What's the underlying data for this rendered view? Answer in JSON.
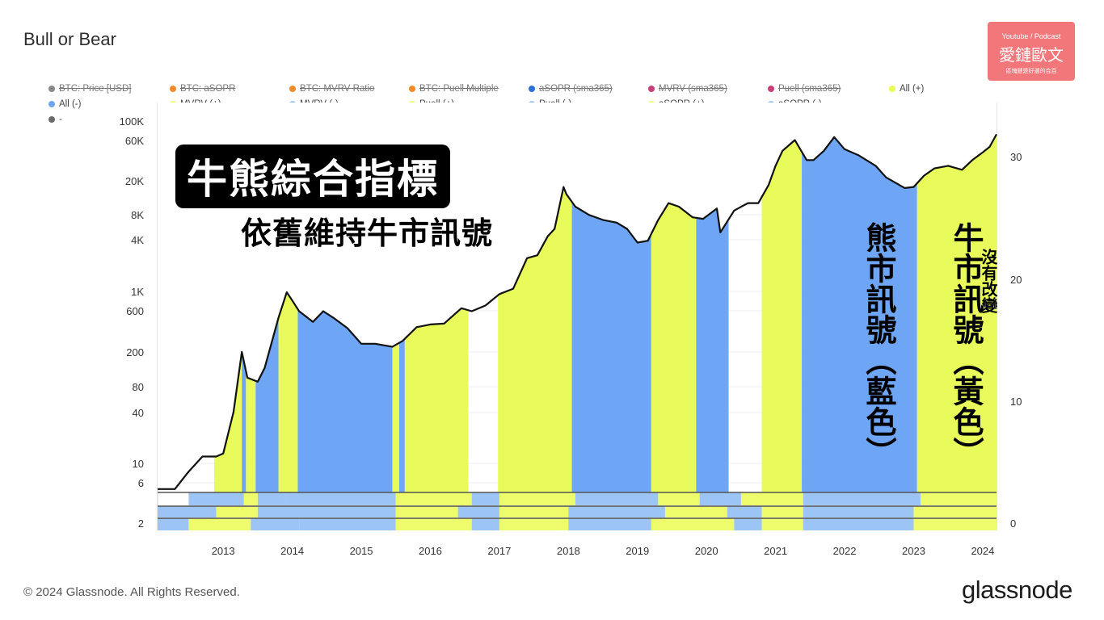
{
  "page": {
    "title": "Bull or Bear",
    "footer": "© 2024 Glassnode. All Rights Reserved.",
    "brand": "glassnode"
  },
  "badge": {
    "line1": "Youtube / Podcast",
    "line2": "愛鏈歐文",
    "line3": "區塊鏈是好選的合百"
  },
  "overlay": {
    "banner": "牛熊綜合指標",
    "subtitle": "依舊維持牛市訊號",
    "bear_note": "熊市訊號（藍色）",
    "bull_note": "牛市訊號（黃色）",
    "unchanged": "沒有改變"
  },
  "legend": [
    {
      "label": "BTC: Price [USD]",
      "color": "#8a8a8a",
      "off": true
    },
    {
      "label": "BTC: aSOPR",
      "color": "#f08a2a",
      "off": true
    },
    {
      "label": "BTC: MVRV Ratio",
      "color": "#f08a2a",
      "off": true
    },
    {
      "label": "BTC: Puell Multiple",
      "color": "#f08a2a",
      "off": true
    },
    {
      "label": "aSOPR (sma365)",
      "color": "#2e6fd8",
      "off": true
    },
    {
      "label": "MVRV (sma365)",
      "color": "#c8407a",
      "off": true
    },
    {
      "label": "Puell (sma365)",
      "color": "#c8407a",
      "off": true
    },
    {
      "label": "All (+)",
      "color": "#e8fb5a",
      "off": false
    },
    {
      "label": "All (-)",
      "color": "#6ea6f5",
      "off": false
    },
    {
      "label": "MVRV (+)",
      "color": "#eefb6a",
      "off": false
    },
    {
      "label": "MVRV (-)",
      "color": "#9cc4f5",
      "off": false
    },
    {
      "label": "Puell (+)",
      "color": "#eefb6a",
      "off": false
    },
    {
      "label": "Puell (-)",
      "color": "#9cc4f5",
      "off": false
    },
    {
      "label": "aSOPR (+)",
      "color": "#eefb6a",
      "off": false
    },
    {
      "label": "aSOPR (-)",
      "color": "#9cc4f5",
      "off": false
    },
    {
      "label": "-",
      "color": "",
      "off": false
    },
    {
      "label": "-",
      "color": "#6b6b6b",
      "off": false
    },
    {
      "label": "-",
      "color": "#6b6b6b",
      "off": false
    },
    {
      "label": "-",
      "color": "#6b6b6b",
      "off": false
    },
    {
      "label": "BTC: Price [USD]",
      "color": "#111111",
      "off": false
    }
  ],
  "chart_data": {
    "type": "line",
    "title": "Bull or Bear",
    "x_range": [
      2012.05,
      2024.2
    ],
    "x_ticks": [
      "2013",
      "2014",
      "2015",
      "2016",
      "2017",
      "2018",
      "2019",
      "2020",
      "2021",
      "2022",
      "2023",
      "2024"
    ],
    "y_left_scale": "log",
    "y_left_ticks": [
      "2",
      "6",
      "10",
      "40",
      "80",
      "200",
      "600",
      "1K",
      "4K",
      "8K",
      "20K",
      "60K",
      "100K"
    ],
    "y_right_ticks": [
      "0",
      "10",
      "20",
      "30"
    ],
    "series": [
      {
        "name": "BTC: Price [USD]",
        "x": [
          2012.05,
          2012.3,
          2012.5,
          2012.7,
          2012.9,
          2013.0,
          2013.15,
          2013.27,
          2013.35,
          2013.5,
          2013.6,
          2013.8,
          2013.92,
          2014.0,
          2014.1,
          2014.3,
          2014.45,
          2014.6,
          2014.8,
          2015.0,
          2015.2,
          2015.45,
          2015.6,
          2015.8,
          2016.0,
          2016.2,
          2016.45,
          2016.6,
          2016.8,
          2017.0,
          2017.2,
          2017.4,
          2017.55,
          2017.7,
          2017.8,
          2017.93,
          2017.97,
          2018.1,
          2018.3,
          2018.5,
          2018.7,
          2018.85,
          2019.0,
          2019.15,
          2019.3,
          2019.45,
          2019.6,
          2019.8,
          2019.95,
          2020.15,
          2020.2,
          2020.4,
          2020.6,
          2020.75,
          2020.9,
          2021.0,
          2021.1,
          2021.28,
          2021.45,
          2021.55,
          2021.7,
          2021.85,
          2022.0,
          2022.2,
          2022.45,
          2022.6,
          2022.87,
          2023.0,
          2023.15,
          2023.3,
          2023.5,
          2023.7,
          2023.85,
          2024.0,
          2024.1,
          2024.2
        ],
        "values": [
          5,
          5,
          8,
          12,
          12,
          13,
          40,
          200,
          100,
          90,
          130,
          500,
          1000,
          800,
          600,
          450,
          600,
          500,
          380,
          250,
          250,
          230,
          270,
          390,
          420,
          430,
          650,
          600,
          700,
          950,
          1100,
          2500,
          2700,
          4500,
          5500,
          17000,
          14000,
          10000,
          8000,
          7000,
          6500,
          5500,
          3800,
          4000,
          7000,
          11000,
          10000,
          7500,
          7200,
          9500,
          5000,
          9000,
          11000,
          11000,
          18000,
          30000,
          45000,
          60000,
          35000,
          35000,
          45000,
          65000,
          47000,
          40000,
          30000,
          22000,
          16500,
          17000,
          23000,
          28000,
          30000,
          27000,
          35000,
          43000,
          50000,
          70000
        ]
      }
    ],
    "regime_bands": {
      "unit": "year",
      "colors": {
        "bull": "#e8fb5a",
        "bear": "#6ea6f5"
      },
      "all": [
        {
          "from": 2012.05,
          "to": 2012.87,
          "regime": "none"
        },
        {
          "from": 2012.87,
          "to": 2013.27,
          "regime": "bull"
        },
        {
          "from": 2013.27,
          "to": 2013.33,
          "regime": "bear"
        },
        {
          "from": 2013.33,
          "to": 2013.47,
          "regime": "bull"
        },
        {
          "from": 2013.47,
          "to": 2013.8,
          "regime": "bear"
        },
        {
          "from": 2013.8,
          "to": 2014.08,
          "regime": "bull"
        },
        {
          "from": 2014.08,
          "to": 2015.45,
          "regime": "bear"
        },
        {
          "from": 2015.45,
          "to": 2015.55,
          "regime": "bull"
        },
        {
          "from": 2015.55,
          "to": 2015.63,
          "regime": "bear"
        },
        {
          "from": 2015.63,
          "to": 2016.55,
          "regime": "bull"
        },
        {
          "from": 2016.55,
          "to": 2016.98,
          "regime": "none"
        },
        {
          "from": 2016.98,
          "to": 2018.05,
          "regime": "bull"
        },
        {
          "from": 2018.05,
          "to": 2019.2,
          "regime": "bear"
        },
        {
          "from": 2019.2,
          "to": 2019.85,
          "regime": "bull"
        },
        {
          "from": 2019.85,
          "to": 2020.32,
          "regime": "bear"
        },
        {
          "from": 2020.32,
          "to": 2020.8,
          "regime": "none"
        },
        {
          "from": 2020.8,
          "to": 2021.38,
          "regime": "bull"
        },
        {
          "from": 2021.38,
          "to": 2023.05,
          "regime": "bear"
        },
        {
          "from": 2023.05,
          "to": 2024.2,
          "regime": "bull"
        }
      ]
    }
  }
}
